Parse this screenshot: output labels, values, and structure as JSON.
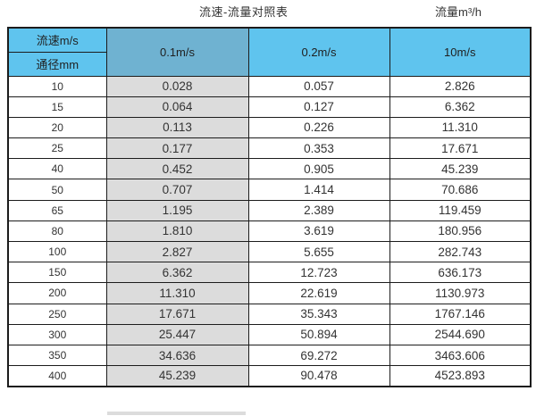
{
  "titles": {
    "main": "流速-流量对照表",
    "unit": "流量m³/h"
  },
  "table": {
    "corner": {
      "top": "流速m/s",
      "bottom": "通径mm"
    },
    "velocity_columns": [
      "0.1m/s",
      "0.2m/s",
      "10m/s"
    ],
    "rows": [
      {
        "diameter": "10",
        "values": [
          "0.028",
          "0.057",
          "2.826"
        ]
      },
      {
        "diameter": "15",
        "values": [
          "0.064",
          "0.127",
          "6.362"
        ]
      },
      {
        "diameter": "20",
        "values": [
          "0.113",
          "0.226",
          "11.310"
        ]
      },
      {
        "diameter": "25",
        "values": [
          "0.177",
          "0.353",
          "17.671"
        ]
      },
      {
        "diameter": "40",
        "values": [
          "0.452",
          "0.905",
          "45.239"
        ]
      },
      {
        "diameter": "50",
        "values": [
          "0.707",
          "1.414",
          "70.686"
        ]
      },
      {
        "diameter": "65",
        "values": [
          "1.195",
          "2.389",
          "119.459"
        ]
      },
      {
        "diameter": "80",
        "values": [
          "1.810",
          "3.619",
          "180.956"
        ]
      },
      {
        "diameter": "100",
        "values": [
          "2.827",
          "5.655",
          "282.743"
        ]
      },
      {
        "diameter": "150",
        "values": [
          "6.362",
          "12.723",
          "636.173"
        ]
      },
      {
        "diameter": "200",
        "values": [
          "11.310",
          "22.619",
          "1130.973"
        ]
      },
      {
        "diameter": "250",
        "values": [
          "17.671",
          "35.343",
          "1767.146"
        ]
      },
      {
        "diameter": "300",
        "values": [
          "25.447",
          "50.894",
          "2544.690"
        ]
      },
      {
        "diameter": "350",
        "values": [
          "34.636",
          "69.272",
          "3463.606"
        ]
      },
      {
        "diameter": "400",
        "values": [
          "45.239",
          "90.478",
          "4523.893"
        ]
      }
    ]
  },
  "colors": {
    "header_blue": "#5fc4ee",
    "header_blue_dark": "#6fb2d1",
    "highlight_column_gray": "#dcdcdc",
    "border": "#1c1c1c",
    "text": "#333333"
  }
}
